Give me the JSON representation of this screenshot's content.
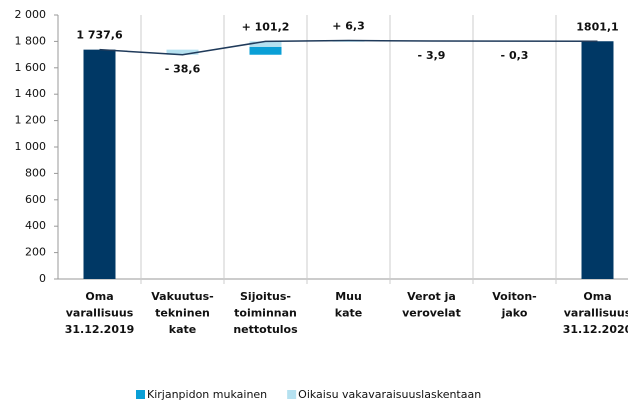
{
  "chart_data": {
    "type": "waterfall",
    "categories": [
      [
        "Oma",
        "varallisuus",
        "31.12.2019"
      ],
      [
        "Vakuutus-",
        "tekninen",
        "kate"
      ],
      [
        "Sijoitus-",
        "toiminnan",
        "nettotulos"
      ],
      [
        "Muu",
        "kate"
      ],
      [
        "Verot ja",
        "verovelat"
      ],
      [
        "Voiton-",
        "jako"
      ],
      [
        "Oma",
        "varallisuus",
        "31.12.2020"
      ]
    ],
    "totals": {
      "color": "#003865",
      "values": [
        1737.6,
        null,
        null,
        null,
        null,
        null,
        1801.1
      ],
      "value_labels": [
        "1 737,6",
        null,
        null,
        null,
        null,
        null,
        "1801,1"
      ]
    },
    "changes": {
      "line_color": "#1f3a5a",
      "values": [
        null,
        -38.6,
        101.2,
        6.3,
        -3.9,
        -0.3,
        null
      ],
      "value_labels": [
        null,
        "- 38,6",
        "+ 101,2",
        "+ 6,3",
        "- 3,9",
        "- 0,3",
        null
      ]
    },
    "series": [
      {
        "name": "Kirjanpidon mukainen",
        "color": "#0a9fd6",
        "values": [
          null,
          0,
          60,
          6.3,
          -3.9,
          -0.3,
          null
        ]
      },
      {
        "name": "Oikaisu vakavaraisuuslaskentaan",
        "color": "#b5e1f0",
        "values": [
          null,
          -38.6,
          41.2,
          0,
          0,
          0,
          null
        ]
      }
    ],
    "ylim": [
      0,
      2000
    ],
    "yticks": [
      0,
      200,
      400,
      600,
      800,
      {
        "value": 1000,
        "label": "1 000"
      },
      {
        "value": 1200,
        "label": "1 200"
      },
      {
        "value": 1400,
        "label": "1 400"
      },
      {
        "value": 1600,
        "label": "1 600"
      },
      {
        "value": 1800,
        "label": "1 800"
      },
      {
        "value": 2000,
        "label": "2 000"
      }
    ]
  }
}
